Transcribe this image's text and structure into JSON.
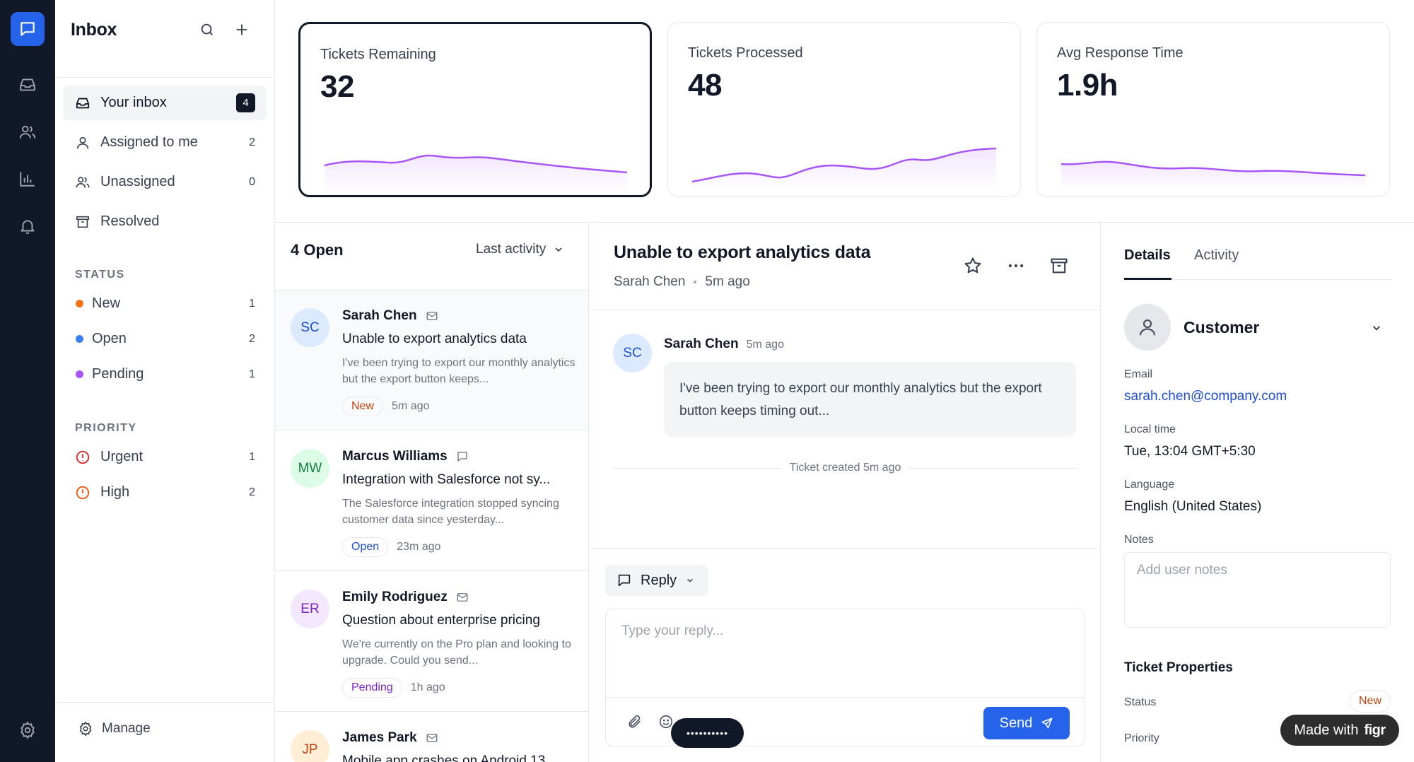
{
  "nav": {
    "title": "Inbox",
    "items": [
      {
        "label": "Your inbox",
        "count": "4"
      },
      {
        "label": "Assigned to me",
        "count": "2"
      },
      {
        "label": "Unassigned",
        "count": "0"
      },
      {
        "label": "Resolved",
        "count": ""
      }
    ],
    "status_heading": "STATUS",
    "status": [
      {
        "label": "New",
        "count": "1",
        "color": "#f97316"
      },
      {
        "label": "Open",
        "count": "2",
        "color": "#3b82f6"
      },
      {
        "label": "Pending",
        "count": "1",
        "color": "#a855f7"
      }
    ],
    "priority_heading": "PRIORITY",
    "priority": [
      {
        "label": "Urgent",
        "count": "1",
        "color": "#dc2626"
      },
      {
        "label": "High",
        "count": "2",
        "color": "#ea580c"
      }
    ],
    "manage_label": "Manage"
  },
  "stats": [
    {
      "label": "Tickets Remaining",
      "value": "32"
    },
    {
      "label": "Tickets Processed",
      "value": "48"
    },
    {
      "label": "Avg Response Time",
      "value": "1.9h"
    }
  ],
  "list": {
    "title": "4 Open",
    "sort_label": "Last activity",
    "tickets": [
      {
        "initials": "SC",
        "name": "Sarah Chen",
        "subject": "Unable to export analytics data",
        "preview": "I've been trying to export our monthly analytics but the export button keeps...",
        "status": "New",
        "time": "5m ago"
      },
      {
        "initials": "MW",
        "name": "Marcus Williams",
        "subject": "Integration with Salesforce not sy...",
        "preview": "The Salesforce integration stopped syncing customer data since yesterday...",
        "status": "Open",
        "time": "23m ago"
      },
      {
        "initials": "ER",
        "name": "Emily Rodriguez",
        "subject": "Question about enterprise pricing",
        "preview": "We're currently on the Pro plan and looking to upgrade. Could you send...",
        "status": "Pending",
        "time": "1h ago"
      },
      {
        "initials": "JP",
        "name": "James Park",
        "subject": "Mobile app crashes on Android 13",
        "preview": "",
        "status": "",
        "time": ""
      }
    ]
  },
  "conversation": {
    "title": "Unable to export analytics data",
    "author": "Sarah Chen",
    "time": "5m ago",
    "message": {
      "initials": "SC",
      "author": "Sarah Chen",
      "time": "5m ago",
      "text": "I've been trying to export our monthly analytics but the export button keeps timing out..."
    },
    "system_event": "Ticket created 5m ago",
    "reply_mode": "Reply",
    "reply_placeholder": "Type your reply...",
    "send_label": "Send",
    "overlay_pill": "••••••••••"
  },
  "details": {
    "tabs": [
      "Details",
      "Activity"
    ],
    "customer_label": "Customer",
    "email_label": "Email",
    "email": "sarah.chen@company.com",
    "local_time_label": "Local time",
    "local_time": "Tue, 13:04 GMT+5:30",
    "language_label": "Language",
    "language": "English (United States)",
    "notes_label": "Notes",
    "notes_placeholder": "Add user notes",
    "properties_heading": "Ticket Properties",
    "status_label": "Status",
    "status_value": "New",
    "priority_label": "Priority"
  },
  "badge": {
    "made_with": "Made with",
    "brand": "figr"
  },
  "colors": {
    "accent": "#2563eb",
    "sparkline": "#a855f7",
    "new": "#c2410c",
    "open": "#1d4ed8",
    "pending": "#7e22ce"
  },
  "icons": {
    "rail": [
      "chat-icon",
      "inbox-tray-icon",
      "users-icon",
      "bar-chart-icon",
      "bell-icon",
      "gear-icon"
    ]
  }
}
